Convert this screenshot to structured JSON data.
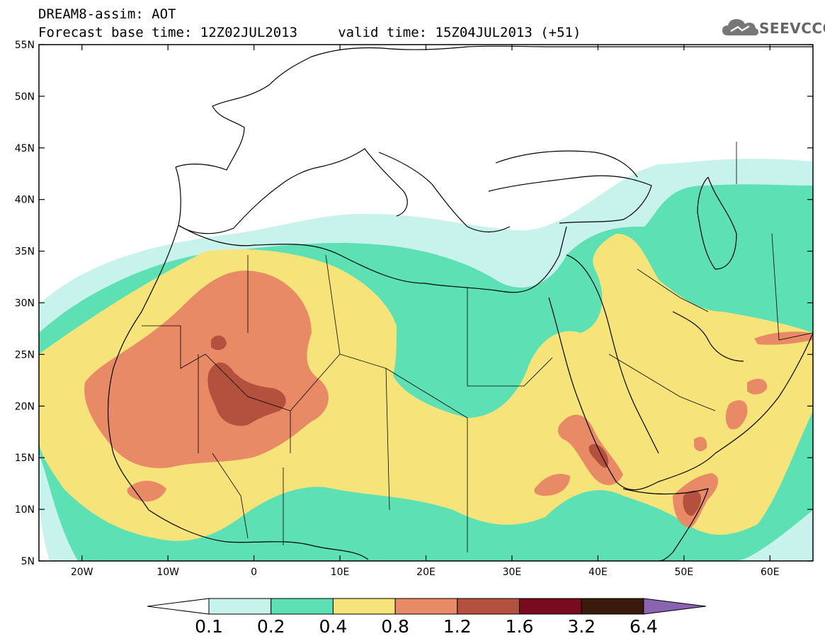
{
  "header": {
    "title_line1": "DREAM8-assim: AOT",
    "title_line2": "Forecast base time: 12Z02JUL2013     valid time: 15Z04JUL2013 (+51)",
    "logo_text": "SEEVCCC"
  },
  "map": {
    "lon_range": [
      -25,
      65
    ],
    "lat_range": [
      5,
      55
    ],
    "lat_labels": [
      {
        "lat": 55,
        "label": "55N"
      },
      {
        "lat": 50,
        "label": "50N"
      },
      {
        "lat": 45,
        "label": "45N"
      },
      {
        "lat": 40,
        "label": "40N"
      },
      {
        "lat": 35,
        "label": "35N"
      },
      {
        "lat": 30,
        "label": "30N"
      },
      {
        "lat": 25,
        "label": "25N"
      },
      {
        "lat": 20,
        "label": "20N"
      },
      {
        "lat": 15,
        "label": "15N"
      },
      {
        "lat": 10,
        "label": "10N"
      },
      {
        "lat": 5,
        "label": "5N"
      }
    ],
    "lon_labels": [
      {
        "lon": -20,
        "label": "20W"
      },
      {
        "lon": -10,
        "label": "10W"
      },
      {
        "lon": 0,
        "label": "0"
      },
      {
        "lon": 10,
        "label": "10E"
      },
      {
        "lon": 20,
        "label": "20E"
      },
      {
        "lon": 30,
        "label": "30E"
      },
      {
        "lon": 40,
        "label": "40E"
      },
      {
        "lon": 50,
        "label": "50E"
      },
      {
        "lon": 60,
        "label": "60E"
      }
    ]
  },
  "colorbar": {
    "colors": [
      "#ffffff",
      "#c8f2ec",
      "#5ee0b5",
      "#f6e47a",
      "#e98a66",
      "#b4503e",
      "#7a0a20",
      "#3a1a0c",
      "#8a64b0"
    ],
    "labels": [
      "0.1",
      "0.2",
      "0.4",
      "0.8",
      "1.2",
      "1.6",
      "3.2",
      "6.4"
    ]
  },
  "fill_colors": {
    "c02": "#c8f2ec",
    "c04": "#5ee0b5",
    "c08": "#f6e47a",
    "c12": "#e98a66",
    "c16": "#b4503e"
  }
}
